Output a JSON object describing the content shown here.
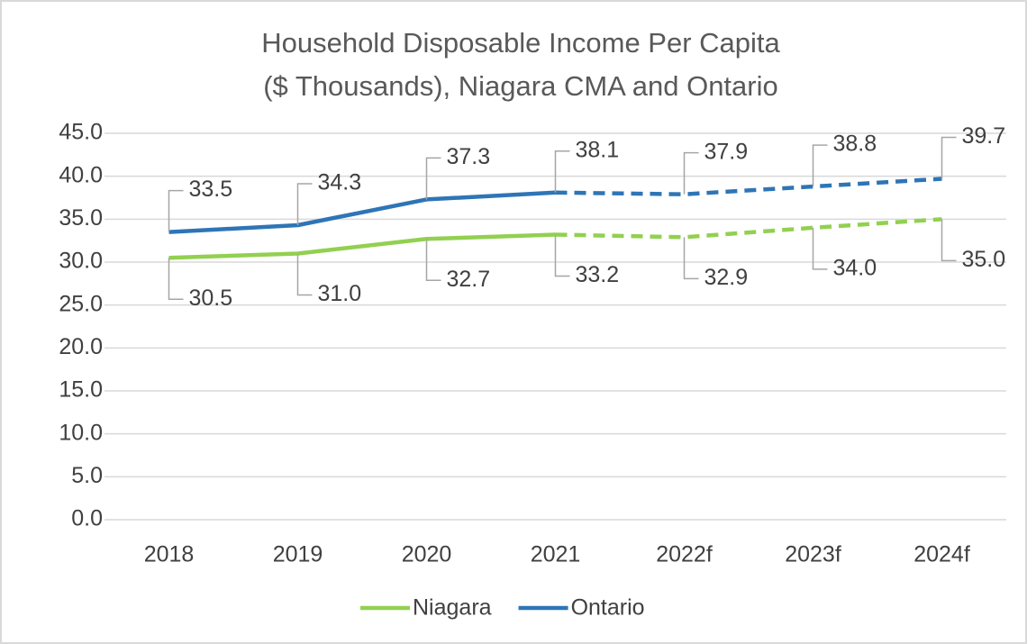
{
  "chart_data": {
    "type": "line",
    "title": [
      "Household Disposable Income Per Capita",
      "($ Thousands), Niagara CMA and Ontario"
    ],
    "categories": [
      "2018",
      "2019",
      "2020",
      "2021",
      "2022f",
      "2023f",
      "2024f"
    ],
    "series": [
      {
        "name": "Niagara",
        "color": "#92d050",
        "values": [
          30.5,
          31.0,
          32.7,
          33.2,
          32.9,
          34.0,
          35.0
        ],
        "value_labels": [
          "30.5",
          "31.0",
          "32.7",
          "33.2",
          "32.9",
          "34.0",
          "35.0"
        ],
        "label_position": "below"
      },
      {
        "name": "Ontario",
        "color": "#2e75b6",
        "values": [
          33.5,
          34.3,
          37.3,
          38.1,
          37.9,
          38.8,
          39.7
        ],
        "value_labels": [
          "33.5",
          "34.3",
          "37.3",
          "38.1",
          "37.9",
          "38.8",
          "39.7"
        ],
        "label_position": "above"
      }
    ],
    "dashed_after": "2021",
    "ylim": [
      0,
      45
    ],
    "yticks": [
      {
        "value": 0,
        "label": "0.0"
      },
      {
        "value": 5,
        "label": "5.0"
      },
      {
        "value": 10,
        "label": "10.0"
      },
      {
        "value": 15,
        "label": "15.0"
      },
      {
        "value": 20,
        "label": "20.0"
      },
      {
        "value": 25,
        "label": "25.0"
      },
      {
        "value": 30,
        "label": "30.0"
      },
      {
        "value": 35,
        "label": "35.0"
      },
      {
        "value": 40,
        "label": "40.0"
      },
      {
        "value": 45,
        "label": "45.0"
      }
    ],
    "grid": true,
    "legend": "bottom"
  }
}
